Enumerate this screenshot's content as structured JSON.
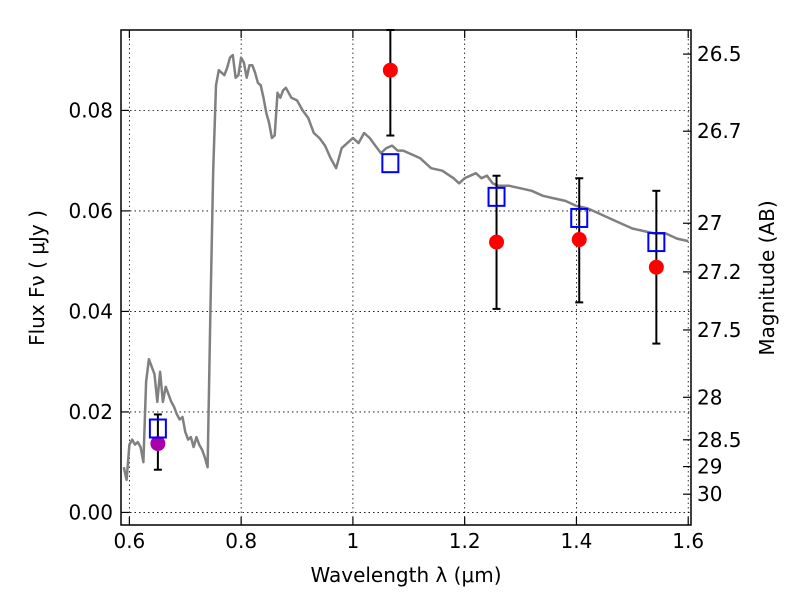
{
  "chart_data": {
    "type": "scatter",
    "xlabel": "Wavelength  λ (μm)",
    "ylabel": "Flux  Fν  ( μJy )",
    "ylabel_right": "Magnitude (AB)",
    "xlim": [
      0.585,
      1.605
    ],
    "ylim": [
      -0.0025,
      0.096
    ],
    "grid": true,
    "x_ticks": [
      {
        "value": 0.6,
        "label": "0.6"
      },
      {
        "value": 0.8,
        "label": "0.8"
      },
      {
        "value": 1.0,
        "label": "1"
      },
      {
        "value": 1.2,
        "label": "1.2"
      },
      {
        "value": 1.4,
        "label": "1.4"
      },
      {
        "value": 1.6,
        "label": "1.6"
      }
    ],
    "y_ticks": [
      {
        "value": 0.0,
        "label": "0.00"
      },
      {
        "value": 0.02,
        "label": "0.02"
      },
      {
        "value": 0.04,
        "label": "0.04"
      },
      {
        "value": 0.06,
        "label": "0.06"
      },
      {
        "value": 0.08,
        "label": "0.08"
      }
    ],
    "right_ticks": [
      {
        "mag": 26.5,
        "label": "26.5"
      },
      {
        "mag": 26.7,
        "label": "26.7"
      },
      {
        "mag": 27.0,
        "label": "27"
      },
      {
        "mag": 27.2,
        "label": "27.2"
      },
      {
        "mag": 27.5,
        "label": "27.5"
      },
      {
        "mag": 28.0,
        "label": "28"
      },
      {
        "mag": 28.5,
        "label": "28.5"
      },
      {
        "mag": 29.0,
        "label": "29"
      },
      {
        "mag": 30.0,
        "label": "30"
      }
    ],
    "series": [
      {
        "kind": "line",
        "color": "#808080",
        "points": [
          [
            0.59,
            0.009
          ],
          [
            0.595,
            0.0065
          ],
          [
            0.6,
            0.0135
          ],
          [
            0.605,
            0.0145
          ],
          [
            0.61,
            0.0135
          ],
          [
            0.615,
            0.014
          ],
          [
            0.62,
            0.013
          ],
          [
            0.625,
            0.01
          ],
          [
            0.63,
            0.026
          ],
          [
            0.635,
            0.0305
          ],
          [
            0.64,
            0.029
          ],
          [
            0.645,
            0.0275
          ],
          [
            0.65,
            0.022
          ],
          [
            0.655,
            0.028
          ],
          [
            0.66,
            0.022
          ],
          [
            0.665,
            0.025
          ],
          [
            0.67,
            0.0235
          ],
          [
            0.675,
            0.022
          ],
          [
            0.68,
            0.021
          ],
          [
            0.685,
            0.0195
          ],
          [
            0.69,
            0.0185
          ],
          [
            0.695,
            0.019
          ],
          [
            0.7,
            0.016
          ],
          [
            0.705,
            0.0145
          ],
          [
            0.71,
            0.015
          ],
          [
            0.715,
            0.013
          ],
          [
            0.72,
            0.015
          ],
          [
            0.725,
            0.0135
          ],
          [
            0.73,
            0.0125
          ],
          [
            0.735,
            0.011
          ],
          [
            0.74,
            0.009
          ],
          [
            0.745,
            0.04
          ],
          [
            0.75,
            0.068
          ],
          [
            0.755,
            0.085
          ],
          [
            0.76,
            0.088
          ],
          [
            0.765,
            0.0875
          ],
          [
            0.77,
            0.087
          ],
          [
            0.775,
            0.0885
          ],
          [
            0.78,
            0.0905
          ],
          [
            0.785,
            0.091
          ],
          [
            0.79,
            0.0865
          ],
          [
            0.795,
            0.087
          ],
          [
            0.8,
            0.0905
          ],
          [
            0.805,
            0.0895
          ],
          [
            0.81,
            0.0865
          ],
          [
            0.815,
            0.089
          ],
          [
            0.82,
            0.089
          ],
          [
            0.825,
            0.0875
          ],
          [
            0.83,
            0.0855
          ],
          [
            0.835,
            0.085
          ],
          [
            0.84,
            0.0825
          ],
          [
            0.845,
            0.0795
          ],
          [
            0.85,
            0.0775
          ],
          [
            0.855,
            0.0745
          ],
          [
            0.86,
            0.075
          ],
          [
            0.865,
            0.0835
          ],
          [
            0.87,
            0.0825
          ],
          [
            0.875,
            0.084
          ],
          [
            0.88,
            0.0845
          ],
          [
            0.89,
            0.0825
          ],
          [
            0.9,
            0.082
          ],
          [
            0.91,
            0.08
          ],
          [
            0.92,
            0.0785
          ],
          [
            0.93,
            0.0755
          ],
          [
            0.94,
            0.0745
          ],
          [
            0.95,
            0.073
          ],
          [
            0.96,
            0.0705
          ],
          [
            0.97,
            0.0685
          ],
          [
            0.98,
            0.0725
          ],
          [
            0.99,
            0.0735
          ],
          [
            1.0,
            0.0745
          ],
          [
            1.01,
            0.0735
          ],
          [
            1.02,
            0.0755
          ],
          [
            1.03,
            0.0745
          ],
          [
            1.04,
            0.073
          ],
          [
            1.05,
            0.0715
          ],
          [
            1.06,
            0.0725
          ],
          [
            1.07,
            0.073
          ],
          [
            1.08,
            0.072
          ],
          [
            1.09,
            0.072
          ],
          [
            1.1,
            0.0715
          ],
          [
            1.12,
            0.0705
          ],
          [
            1.14,
            0.0685
          ],
          [
            1.16,
            0.068
          ],
          [
            1.18,
            0.0665
          ],
          [
            1.19,
            0.0655
          ],
          [
            1.2,
            0.0665
          ],
          [
            1.21,
            0.067
          ],
          [
            1.22,
            0.0675
          ],
          [
            1.23,
            0.0665
          ],
          [
            1.24,
            0.067
          ],
          [
            1.25,
            0.0655
          ],
          [
            1.26,
            0.065
          ],
          [
            1.28,
            0.065
          ],
          [
            1.3,
            0.0645
          ],
          [
            1.32,
            0.064
          ],
          [
            1.34,
            0.063
          ],
          [
            1.36,
            0.0625
          ],
          [
            1.38,
            0.062
          ],
          [
            1.4,
            0.061
          ],
          [
            1.42,
            0.0605
          ],
          [
            1.44,
            0.0595
          ],
          [
            1.46,
            0.0585
          ],
          [
            1.48,
            0.0575
          ],
          [
            1.5,
            0.0565
          ],
          [
            1.52,
            0.056
          ],
          [
            1.54,
            0.0555
          ],
          [
            1.56,
            0.0555
          ],
          [
            1.58,
            0.0545
          ],
          [
            1.6,
            0.054
          ]
        ]
      },
      {
        "kind": "observed",
        "color": "#ff0000",
        "marker": "circle",
        "points": [
          {
            "x": 1.067,
            "y": 0.088,
            "yerr_low": 0.075,
            "yerr_high": 0.096
          },
          {
            "x": 1.257,
            "y": 0.0538,
            "yerr_low": 0.0405,
            "yerr_high": 0.067
          },
          {
            "x": 1.405,
            "y": 0.0543,
            "yerr_low": 0.0418,
            "yerr_high": 0.0665
          },
          {
            "x": 1.543,
            "y": 0.0488,
            "yerr_low": 0.0336,
            "yerr_high": 0.064
          }
        ]
      },
      {
        "kind": "observed",
        "color": "#aa00aa",
        "marker": "circle",
        "points": [
          {
            "x": 0.651,
            "y": 0.0137,
            "yerr_low": 0.0085,
            "yerr_high": 0.0195
          }
        ]
      },
      {
        "kind": "model-bands",
        "color": "#0000ff",
        "marker": "square",
        "points": [
          {
            "x": 0.651,
            "y": 0.0167
          },
          {
            "x": 1.067,
            "y": 0.0695
          },
          {
            "x": 1.257,
            "y": 0.0628
          },
          {
            "x": 1.405,
            "y": 0.0586
          },
          {
            "x": 1.543,
            "y": 0.0538
          }
        ]
      }
    ]
  }
}
